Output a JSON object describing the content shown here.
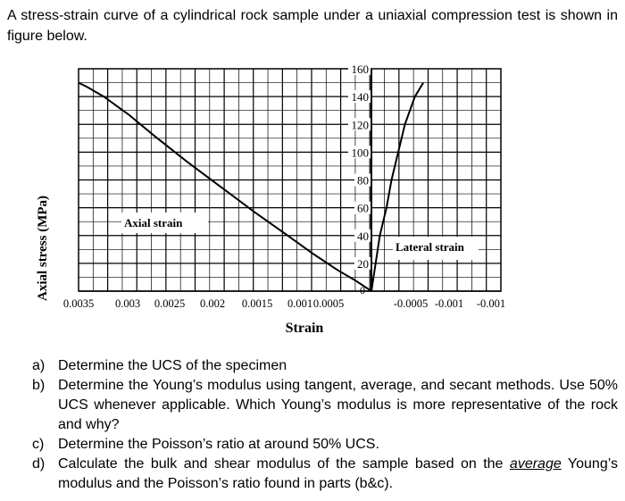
{
  "problem": {
    "intro": "A stress-strain curve of a cylindrical rock sample under a uniaxial compression test is shown in figure below.",
    "questions": [
      {
        "label": "a)",
        "text": "Determine the UCS of the specimen"
      },
      {
        "label": "b)",
        "text": "Determine the Young’s modulus using tangent, average, and secant methods. Use 50% UCS whenever applicable. Which Young’s modulus is more representative of the rock and why?"
      },
      {
        "label": "c)",
        "text": "Determine the Poisson’s ratio at around 50% UCS."
      },
      {
        "label": "d)",
        "text_before": "Calculate the bulk and shear modulus of the sample based on the ",
        "text_emph": "average",
        "text_after": " Young’s modulus and the Poisson’s ratio found in parts (b&c)."
      }
    ]
  },
  "chart_data": {
    "type": "line",
    "title": "",
    "xlabel": "Strain",
    "ylabel": "Axial stress (MPa)",
    "xlim": [
      0.0035,
      -0.0011
    ],
    "ylim": [
      0,
      160
    ],
    "x_tick_labels": [
      "0.0035",
      "0.003",
      "0.0025",
      "0.002",
      "0.0015",
      "0.001",
      "0.0005",
      "-0.0005",
      "-0.001",
      "-0.001"
    ],
    "x_tick_values": [
      0.0035,
      0.003,
      0.0025,
      0.002,
      0.0015,
      0.001,
      0.0005,
      -0.0005,
      -0.001,
      -0.0011
    ],
    "y_tick_labels": [
      "0",
      "20",
      "40",
      "60",
      "80",
      "100",
      "120",
      "140",
      "160"
    ],
    "y_tick_values": [
      0,
      20,
      40,
      60,
      80,
      100,
      120,
      140,
      160
    ],
    "grid": true,
    "series": [
      {
        "name": "Axial strain",
        "points": [
          [
            0,
            0
          ],
          [
            0.0002,
            8
          ],
          [
            0.0004,
            15
          ],
          [
            0.0007,
            27
          ],
          [
            0.001,
            40
          ],
          [
            0.0014,
            57
          ],
          [
            0.0018,
            75
          ],
          [
            0.0022,
            93
          ],
          [
            0.0026,
            112
          ],
          [
            0.0029,
            127
          ],
          [
            0.0032,
            140
          ],
          [
            0.0034,
            147
          ],
          [
            0.0035,
            150
          ]
        ]
      },
      {
        "name": "Lateral strain",
        "points": [
          [
            0,
            0
          ],
          [
            -5e-05,
            20
          ],
          [
            -0.0001,
            40
          ],
          [
            -0.00018,
            60
          ],
          [
            -0.00024,
            80
          ],
          [
            -0.00032,
            100
          ],
          [
            -0.0004,
            120
          ],
          [
            -0.00052,
            140
          ],
          [
            -0.00062,
            150
          ]
        ]
      }
    ]
  }
}
